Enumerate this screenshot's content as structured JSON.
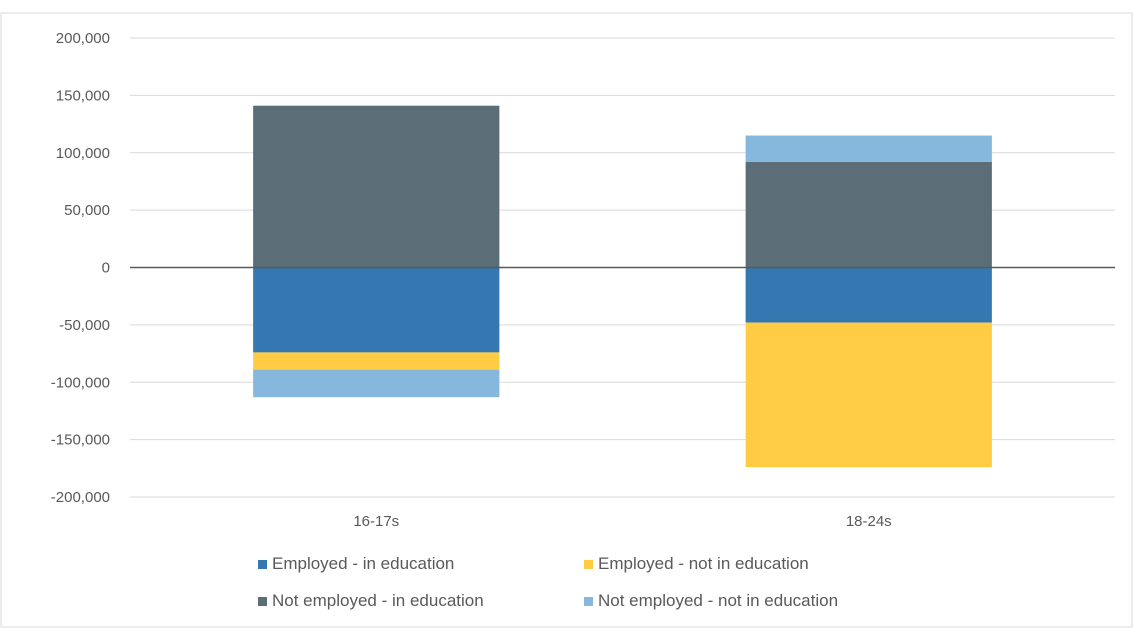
{
  "chart_data": {
    "type": "bar",
    "stacked": true,
    "categories": [
      "16-17s",
      "18-24s"
    ],
    "series": [
      {
        "name": "Employed - in education",
        "color": "#3577B0",
        "values": [
          -74000,
          -48000
        ]
      },
      {
        "name": "Employed - not in education",
        "color": "#FFCC44",
        "values": [
          -15000,
          -126000
        ]
      },
      {
        "name": "Not employed - in education",
        "color": "#5B6E78",
        "values": [
          141000,
          92000
        ]
      },
      {
        "name": "Not employed - not in education",
        "color": "#86B8DE",
        "values": [
          -24000,
          23000
        ]
      }
    ],
    "yticks": [
      "200,000",
      "150,000",
      "100,000",
      "50,000",
      "0",
      "-50,000",
      "-100,000",
      "-150,000",
      "-200,000"
    ],
    "ylim": [
      -200000,
      200000
    ],
    "ystep": 50000,
    "grid": true,
    "legend_position": "bottom"
  }
}
